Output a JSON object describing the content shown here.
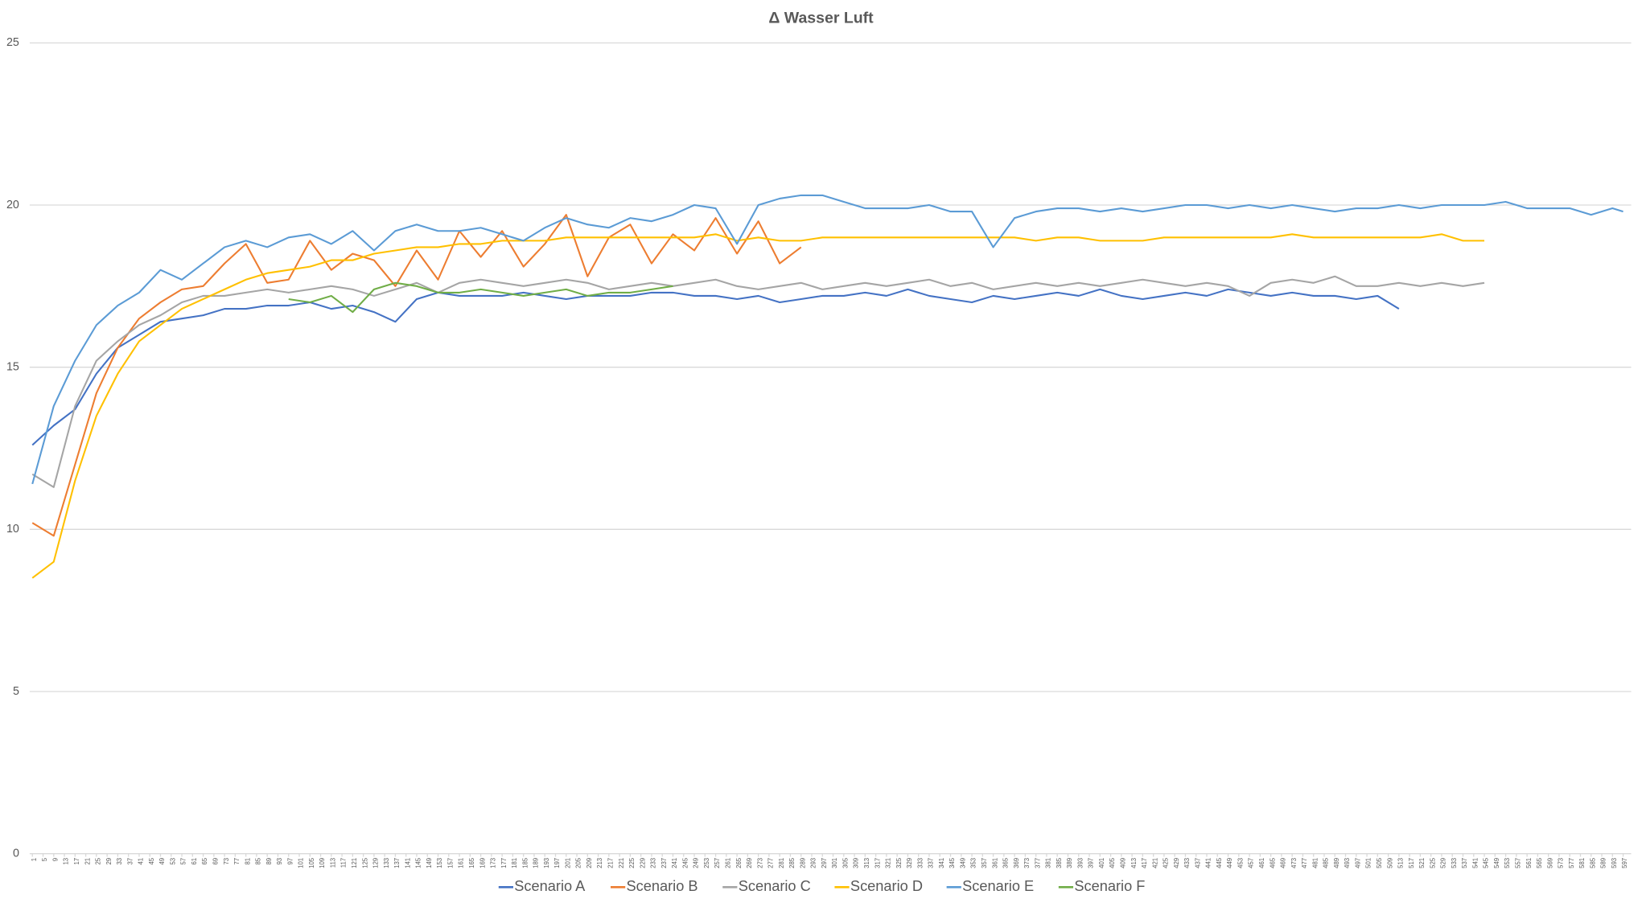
{
  "chart_data": {
    "type": "line",
    "title": "Δ Wasser Luft",
    "x": [
      1,
      9,
      17,
      25,
      33,
      41,
      49,
      57,
      65,
      73,
      81,
      89,
      97,
      105,
      113,
      121,
      129,
      137,
      145,
      153,
      161,
      169,
      177,
      185,
      193,
      201,
      209,
      217,
      225,
      233,
      241,
      249,
      257,
      265,
      273,
      281,
      289,
      297,
      305,
      313,
      321,
      329,
      337,
      345,
      353,
      361,
      369,
      377,
      385,
      393,
      401,
      409,
      417,
      425,
      433,
      441,
      449,
      457,
      465,
      473,
      481,
      489,
      497,
      505,
      513,
      521,
      529,
      537,
      545,
      553,
      561,
      569,
      577,
      585,
      593,
      597
    ],
    "xlim": [
      0,
      600
    ],
    "xticks": [
      1,
      5,
      9,
      13,
      17,
      21,
      25,
      29,
      33,
      37,
      41,
      45,
      49,
      53,
      57,
      61,
      65,
      69,
      73,
      77,
      81,
      85,
      89,
      93,
      97,
      101,
      105,
      109,
      113,
      117,
      121,
      125,
      129,
      133,
      137,
      141,
      145,
      149,
      153,
      157,
      161,
      165,
      169,
      173,
      177,
      181,
      185,
      189,
      193,
      197,
      201,
      205,
      209,
      213,
      217,
      221,
      225,
      229,
      233,
      237,
      241,
      245,
      249,
      253,
      257,
      261,
      265,
      269,
      273,
      277,
      281,
      285,
      289,
      293,
      297,
      301,
      305,
      309,
      313,
      317,
      321,
      325,
      329,
      333,
      337,
      341,
      345,
      349,
      353,
      357,
      361,
      365,
      369,
      373,
      377,
      381,
      385,
      389,
      393,
      397,
      401,
      405,
      409,
      413,
      417,
      421,
      425,
      429,
      433,
      437,
      441,
      445,
      449,
      453,
      457,
      461,
      465,
      469,
      473,
      477,
      481,
      485,
      489,
      493,
      497,
      501,
      505,
      509,
      513,
      517,
      521,
      525,
      529,
      533,
      537,
      541,
      545,
      549,
      553,
      557,
      561,
      565,
      569,
      573,
      577,
      581,
      585,
      589,
      593,
      597
    ],
    "ylim": [
      0,
      25
    ],
    "yticks": [
      0,
      5,
      10,
      15,
      20,
      25
    ],
    "grid": true,
    "legend": "bottom",
    "series": [
      {
        "name": "Scenario A",
        "color": "#4472c4",
        "values": [
          12.6,
          13.2,
          13.7,
          14.8,
          15.6,
          16.0,
          16.4,
          16.5,
          16.6,
          16.8,
          16.8,
          16.9,
          16.9,
          17.0,
          16.8,
          16.9,
          16.7,
          16.4,
          17.1,
          17.3,
          17.2,
          17.2,
          17.2,
          17.3,
          17.2,
          17.1,
          17.2,
          17.2,
          17.2,
          17.3,
          17.3,
          17.2,
          17.2,
          17.1,
          17.2,
          17.0,
          17.1,
          17.2,
          17.2,
          17.3,
          17.2,
          17.4,
          17.2,
          17.1,
          17.0,
          17.2,
          17.1,
          17.2,
          17.3,
          17.2,
          17.4,
          17.2,
          17.1,
          17.2,
          17.3,
          17.2,
          17.4,
          17.3,
          17.2,
          17.3,
          17.2,
          17.2,
          17.1,
          17.2,
          16.8,
          null,
          null,
          null,
          null,
          null,
          null,
          null,
          null,
          null,
          null,
          null
        ]
      },
      {
        "name": "Scenario B",
        "color": "#ed7d31",
        "values": [
          10.2,
          9.8,
          12.0,
          14.2,
          15.6,
          16.5,
          17.0,
          17.4,
          17.5,
          18.2,
          18.8,
          17.6,
          17.7,
          18.9,
          18.0,
          18.5,
          18.3,
          17.5,
          18.6,
          17.7,
          19.2,
          18.4,
          19.2,
          18.1,
          18.8,
          19.7,
          17.8,
          19.0,
          19.4,
          18.2,
          19.1,
          18.6,
          19.6,
          18.5,
          19.5,
          18.2,
          18.7,
          null,
          null,
          null,
          null,
          null,
          null,
          null,
          null,
          null,
          null,
          null,
          null,
          null,
          null,
          null,
          null,
          null,
          null,
          null,
          null,
          null,
          null,
          null,
          null,
          null,
          null,
          null,
          null,
          null,
          null,
          null,
          null,
          null,
          null,
          null,
          null,
          null,
          null,
          null
        ]
      },
      {
        "name": "Scenario C",
        "color": "#a5a5a5",
        "values": [
          11.7,
          11.3,
          13.8,
          15.2,
          15.8,
          16.3,
          16.6,
          17.0,
          17.2,
          17.2,
          17.3,
          17.4,
          17.3,
          17.4,
          17.5,
          17.4,
          17.2,
          17.4,
          17.6,
          17.3,
          17.6,
          17.7,
          17.6,
          17.5,
          17.6,
          17.7,
          17.6,
          17.4,
          17.5,
          17.6,
          17.5,
          17.6,
          17.7,
          17.5,
          17.4,
          17.5,
          17.6,
          17.4,
          17.5,
          17.6,
          17.5,
          17.6,
          17.7,
          17.5,
          17.6,
          17.4,
          17.5,
          17.6,
          17.5,
          17.6,
          17.5,
          17.6,
          17.7,
          17.6,
          17.5,
          17.6,
          17.5,
          17.2,
          17.6,
          17.7,
          17.6,
          17.8,
          17.5,
          17.5,
          17.6,
          17.5,
          17.6,
          17.5,
          17.6,
          null,
          null,
          null,
          null,
          null,
          null,
          null
        ]
      },
      {
        "name": "Scenario D",
        "color": "#ffc000",
        "values": [
          8.5,
          9.0,
          11.5,
          13.5,
          14.8,
          15.8,
          16.3,
          16.8,
          17.1,
          17.4,
          17.7,
          17.9,
          18.0,
          18.1,
          18.3,
          18.3,
          18.5,
          18.6,
          18.7,
          18.7,
          18.8,
          18.8,
          18.9,
          18.9,
          18.9,
          19.0,
          19.0,
          19.0,
          19.0,
          19.0,
          19.0,
          19.0,
          19.1,
          18.9,
          19.0,
          18.9,
          18.9,
          19.0,
          19.0,
          19.0,
          19.0,
          19.0,
          19.0,
          19.0,
          19.0,
          19.0,
          19.0,
          18.9,
          19.0,
          19.0,
          18.9,
          18.9,
          18.9,
          19.0,
          19.0,
          19.0,
          19.0,
          19.0,
          19.0,
          19.1,
          19.0,
          19.0,
          19.0,
          19.0,
          19.0,
          19.0,
          19.1,
          18.9,
          18.9,
          null,
          null,
          null,
          null,
          null,
          null,
          null
        ]
      },
      {
        "name": "Scenario E",
        "color": "#5b9bd5",
        "values": [
          11.4,
          13.8,
          15.2,
          16.3,
          16.9,
          17.3,
          18.0,
          17.7,
          18.2,
          18.7,
          18.9,
          18.7,
          19.0,
          19.1,
          18.8,
          19.2,
          18.6,
          19.2,
          19.4,
          19.2,
          19.2,
          19.3,
          19.1,
          18.9,
          19.3,
          19.6,
          19.4,
          19.3,
          19.6,
          19.5,
          19.7,
          20.0,
          19.9,
          18.8,
          20.0,
          20.2,
          20.3,
          20.3,
          20.1,
          19.9,
          19.9,
          19.9,
          20.0,
          19.8,
          19.8,
          18.7,
          19.6,
          19.8,
          19.9,
          19.9,
          19.8,
          19.9,
          19.8,
          19.9,
          20.0,
          20.0,
          19.9,
          20.0,
          19.9,
          20.0,
          19.9,
          19.8,
          19.9,
          19.9,
          20.0,
          19.9,
          20.0,
          20.0,
          20.0,
          20.1,
          19.9,
          19.9,
          19.9,
          19.7,
          19.9,
          19.8
        ]
      },
      {
        "name": "Scenario F",
        "color": "#70ad47",
        "values": [
          null,
          null,
          null,
          null,
          null,
          null,
          null,
          null,
          null,
          null,
          null,
          null,
          17.1,
          17.0,
          17.2,
          16.7,
          17.4,
          17.6,
          17.5,
          17.3,
          17.3,
          17.4,
          17.3,
          17.2,
          17.3,
          17.4,
          17.2,
          17.3,
          17.3,
          17.4,
          17.5,
          null,
          null,
          null,
          null,
          null,
          null,
          null,
          null,
          null,
          null,
          null,
          null,
          null,
          null,
          null,
          null,
          null,
          null,
          null,
          null,
          null,
          null,
          null,
          null,
          null,
          null,
          null,
          null,
          null,
          null,
          null,
          null,
          null,
          null,
          null,
          null,
          null,
          null,
          null,
          null,
          null,
          null,
          null,
          null,
          null
        ]
      }
    ]
  }
}
